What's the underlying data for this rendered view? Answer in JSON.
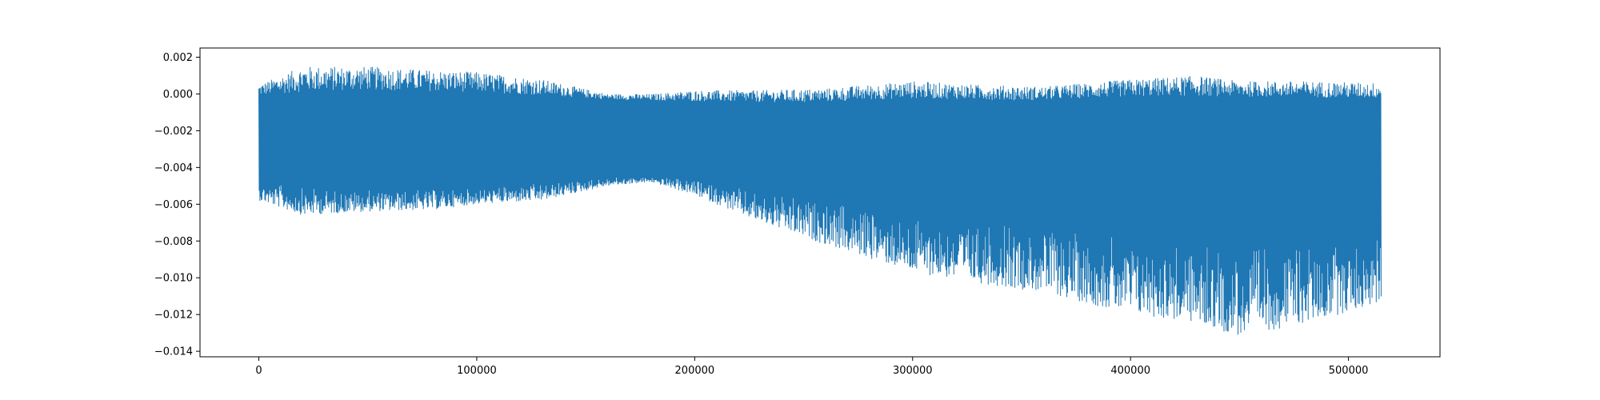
{
  "chart_data": {
    "type": "line",
    "title": "",
    "xlabel": "",
    "ylabel": "",
    "xlim": [
      -27000,
      542000
    ],
    "ylim": [
      -0.0143,
      0.0025
    ],
    "grid": false,
    "legend": "none",
    "xticks": [
      0,
      100000,
      200000,
      300000,
      400000,
      500000
    ],
    "xtick_labels": [
      "0",
      "100000",
      "200000",
      "300000",
      "400000",
      "500000"
    ],
    "yticks": [
      0.002,
      0.0,
      -0.002,
      -0.004,
      -0.006,
      -0.008,
      -0.01,
      -0.012,
      -0.014
    ],
    "ytick_labels": [
      "0.002",
      "0.000",
      "−0.002",
      "−0.004",
      "−0.006",
      "−0.008",
      "−0.010",
      "−0.012",
      "−0.014"
    ],
    "series": [
      {
        "color": "#1f77b4",
        "x_range": [
          0,
          515000
        ],
        "envelope": {
          "x": [
            0,
            20000,
            50000,
            80000,
            100000,
            130000,
            160000,
            180000,
            200000,
            230000,
            260000,
            300000,
            330000,
            360000,
            400000,
            430000,
            450000,
            480000,
            515000
          ],
          "upper": [
            0.0005,
            0.0015,
            0.0015,
            0.0013,
            0.0012,
            0.0008,
            0.0,
            0.0,
            0.0002,
            0.0002,
            0.0003,
            0.0007,
            0.0005,
            0.0004,
            0.0008,
            0.001,
            0.0007,
            0.0007,
            0.0006
          ],
          "lower": [
            -0.0058,
            -0.0066,
            -0.0064,
            -0.0063,
            -0.006,
            -0.0058,
            -0.005,
            -0.0048,
            -0.0055,
            -0.007,
            -0.0082,
            -0.0097,
            -0.0103,
            -0.0108,
            -0.012,
            -0.0125,
            -0.0132,
            -0.0125,
            -0.0114
          ]
        },
        "core": {
          "x": [
            0,
            50000,
            100000,
            150000,
            200000,
            250000,
            300000,
            350000,
            400000,
            450000,
            515000
          ],
          "upper": [
            -0.0002,
            0.0,
            -0.0001,
            -0.0003,
            -0.0005,
            -0.0006,
            -0.0004,
            -0.0005,
            -0.0003,
            -0.0003,
            -0.0004
          ],
          "lower": [
            -0.0044,
            -0.0048,
            -0.0048,
            -0.0044,
            -0.0044,
            -0.005,
            -0.0056,
            -0.006,
            -0.0064,
            -0.0068,
            -0.0066
          ]
        }
      }
    ]
  }
}
